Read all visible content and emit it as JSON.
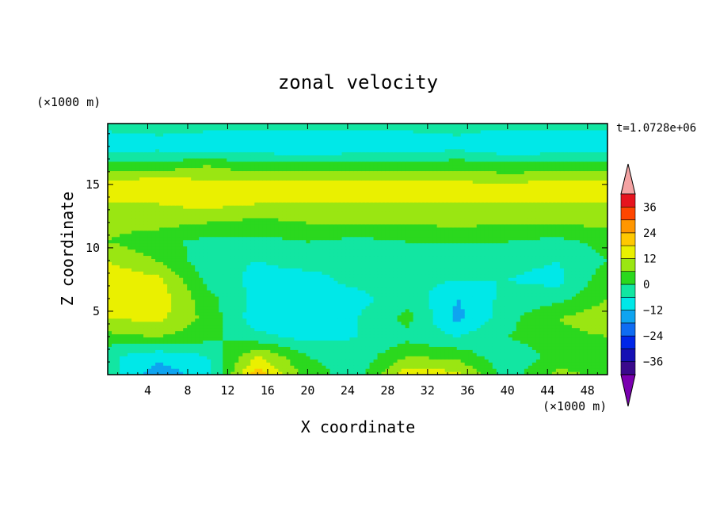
{
  "chart_data": {
    "type": "heatmap",
    "title": "zonal velocity",
    "xlabel": "X coordinate",
    "ylabel": "Z coordinate",
    "x_unit": "(×1000 m)",
    "y_unit": "(×1000 m)",
    "time_label": "t=1.0728e+06",
    "xlim": [
      0,
      50
    ],
    "ylim": [
      0,
      19.8
    ],
    "x_ticks": [
      4,
      8,
      12,
      16,
      20,
      24,
      28,
      32,
      36,
      40,
      44,
      48
    ],
    "y_ticks": [
      5,
      10,
      15
    ],
    "colorbar": {
      "ticks": [
        36,
        24,
        12,
        0,
        -12,
        -24,
        -36
      ],
      "levels": [
        -42,
        -36,
        -30,
        -24,
        -18,
        -12,
        -6,
        0,
        6,
        12,
        18,
        24,
        30,
        36,
        42
      ],
      "colors": [
        "#7a00b0",
        "#3a0a8c",
        "#1510b4",
        "#0026e8",
        "#0f6cf2",
        "#0ea4f0",
        "#00e8e8",
        "#12e6a2",
        "#2bd81e",
        "#9ae612",
        "#eaf000",
        "#ffc800",
        "#ff9600",
        "#ff4600",
        "#e6141e",
        "#f4a3a3"
      ],
      "extend": "both"
    },
    "z_grid": {
      "x": [
        0,
        5,
        10,
        15,
        20,
        25,
        30,
        35,
        40,
        45,
        50
      ],
      "y": [
        0,
        1.5,
        3,
        4.5,
        6,
        7.5,
        9,
        10.5,
        12,
        13.5,
        15,
        16.5,
        18,
        19.8
      ],
      "values": [
        [
          -3,
          -16,
          -9,
          22,
          3,
          -3,
          16,
          14,
          -3,
          8,
          4
        ],
        [
          -5,
          -10,
          -6,
          12,
          0,
          -4,
          6,
          4,
          -5,
          2,
          3
        ],
        [
          4,
          6,
          2,
          -4,
          -8,
          -6,
          -2,
          -6,
          0,
          4,
          6
        ],
        [
          12,
          14,
          4,
          -10,
          -10,
          -6,
          2,
          -14,
          -2,
          6,
          10
        ],
        [
          14,
          16,
          2,
          -8,
          -12,
          -8,
          -2,
          -12,
          -4,
          -2,
          6
        ],
        [
          16,
          14,
          -2,
          -8,
          -8,
          -4,
          -4,
          -6,
          -6,
          -8,
          4
        ],
        [
          12,
          6,
          -4,
          -6,
          -4,
          -6,
          -4,
          -4,
          -4,
          -6,
          0
        ],
        [
          6,
          2,
          -2,
          -2,
          0,
          -2,
          0,
          0,
          0,
          -2,
          2
        ],
        [
          8,
          8,
          6,
          4,
          6,
          6,
          6,
          8,
          6,
          6,
          8
        ],
        [
          12,
          12,
          14,
          12,
          12,
          12,
          12,
          12,
          12,
          12,
          12
        ],
        [
          14,
          18,
          14,
          14,
          14,
          14,
          14,
          14,
          12,
          16,
          14
        ],
        [
          2,
          2,
          6,
          2,
          2,
          2,
          2,
          4,
          2,
          2,
          4
        ],
        [
          -10,
          -8,
          -10,
          -10,
          -12,
          -10,
          -10,
          -8,
          -12,
          -10,
          -10
        ],
        [
          -4,
          -4,
          -4,
          -4,
          -4,
          -4,
          -4,
          -4,
          -4,
          -4,
          -4
        ]
      ]
    }
  }
}
